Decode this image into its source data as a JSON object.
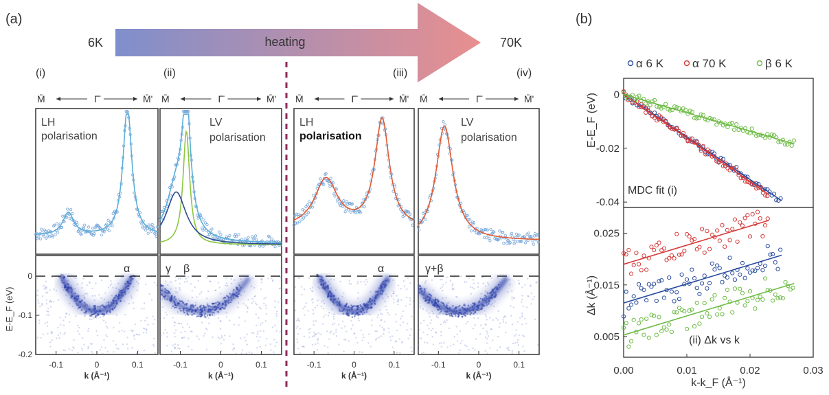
{
  "figure": {
    "panel_a_label": "(a)",
    "panel_b_label": "(b)",
    "temp_start": "6K",
    "temp_end": "70K",
    "arrow_label": "heating",
    "arrow_gradient": [
      "#7f8fcc",
      "#e88f8f"
    ]
  },
  "chart_data": [
    {
      "id": "a-i",
      "type": "line",
      "roman": "(i)",
      "k_labels": [
        "M̄",
        "Γ̄",
        "M̄'"
      ],
      "mdc_text": [
        "LH",
        "polarisation"
      ],
      "band_labels": [
        "α"
      ],
      "ylabel": "E-E_F (eV)",
      "xlabel": "k (Å⁻¹)",
      "x_ticks": [
        "-0.1",
        "0",
        "0.1"
      ],
      "y_ticks": [
        "0",
        "-0.1",
        "-0.2"
      ],
      "xlim": [
        -0.15,
        0.15
      ],
      "mdc_series": [
        {
          "color": "#5aaed8",
          "peaks": [
            {
              "center": -0.07,
              "height": 0.17,
              "width": 0.016
            },
            {
              "center": 0.075,
              "height": 0.98,
              "width": 0.013
            }
          ],
          "baseline": 0.1
        }
      ],
      "arpes_bands": [
        {
          "center": 0.0,
          "curvature": 12,
          "intensity": 1.0
        }
      ],
      "fermi_line": true
    },
    {
      "id": "a-ii",
      "type": "line",
      "roman": "(ii)",
      "k_labels": [
        "M̄",
        "Γ̄",
        "M̄'"
      ],
      "mdc_text": [
        "LV",
        "polarisation"
      ],
      "band_labels": [
        "γ",
        "β"
      ],
      "xlabel": "k (Å⁻¹)",
      "x_ticks": [
        "-0.1",
        "0",
        "0.1"
      ],
      "xlim": [
        -0.15,
        0.15
      ],
      "mdc_series": [
        {
          "name": "total",
          "color": "#5aaed8",
          "peaks": [
            {
              "center": -0.085,
              "height": 0.95,
              "width": 0.012
            },
            {
              "center": -0.11,
              "height": 0.4,
              "width": 0.03
            }
          ],
          "baseline": 0.04
        },
        {
          "name": "green",
          "color": "#8cc63f",
          "peaks": [
            {
              "center": -0.085,
              "height": 0.86,
              "width": 0.01
            }
          ],
          "baseline": 0.03
        },
        {
          "name": "blue",
          "color": "#2b4c8c",
          "peaks": [
            {
              "center": -0.11,
              "height": 0.4,
              "width": 0.03
            }
          ],
          "baseline": 0.03
        }
      ],
      "arpes_bands": [
        {
          "center": -0.05,
          "curvature": 6,
          "intensity": 0.8
        }
      ],
      "fermi_line": true
    },
    {
      "id": "a-iii",
      "type": "line",
      "roman": "(iii)",
      "k_labels": [
        "M̄",
        "Γ̄",
        "M̄'"
      ],
      "mdc_text": [
        "LH",
        "polarisation"
      ],
      "band_labels": [
        "α"
      ],
      "xlabel": "k (Å⁻¹)",
      "x_ticks": [
        "-0.1",
        "0",
        "0.1"
      ],
      "xlim": [
        -0.15,
        0.15
      ],
      "mdc_series": [
        {
          "color": "#e05a32",
          "peaks": [
            {
              "center": -0.07,
              "height": 0.37,
              "width": 0.035
            },
            {
              "center": 0.07,
              "height": 0.82,
              "width": 0.022
            }
          ],
          "baseline": 0.15
        }
      ],
      "arpes_bands": [
        {
          "center": 0.0,
          "curvature": 12,
          "intensity": 1.0
        }
      ],
      "fermi_line": true
    },
    {
      "id": "a-iv",
      "type": "line",
      "roman": "(iv)",
      "k_labels": [
        "M̄",
        "Γ̄",
        "M̄'"
      ],
      "mdc_text": [
        "LV",
        "polarisation"
      ],
      "band_labels": [
        "γ+β"
      ],
      "xlabel": "k (Å⁻¹)",
      "x_ticks": [
        "-0.1",
        "0",
        "0.1"
      ],
      "xlim": [
        -0.15,
        0.15
      ],
      "mdc_series": [
        {
          "color": "#e05a32",
          "peaks": [
            {
              "center": -0.085,
              "height": 0.87,
              "width": 0.026
            }
          ],
          "baseline": 0.06
        }
      ],
      "arpes_bands": [
        {
          "center": -0.05,
          "curvature": 6,
          "intensity": 1.0
        }
      ],
      "fermi_line": true
    },
    {
      "id": "b-i",
      "type": "scatter",
      "panel_label": "MDC fit   (i)",
      "ylabel": "E-E_F (eV)",
      "y_ticks": [
        0,
        -0.02,
        -0.04
      ],
      "ylim": [
        -0.042,
        0.006
      ],
      "xlim": [
        0.0,
        0.03
      ],
      "legend": [
        "α 6 K",
        "α 70 K",
        "β 6 K"
      ],
      "series": [
        {
          "name": "α 6 K",
          "color": "#2b4c9e",
          "slope": -1.58,
          "x_range": [
            0.0,
            0.025
          ]
        },
        {
          "name": "α 70 K",
          "color": "#d63a3a",
          "slope": -1.62,
          "x_range": [
            0.0,
            0.023
          ]
        },
        {
          "name": "β 6 K",
          "color": "#6dbb45",
          "slope": -0.68,
          "x_range": [
            0.0,
            0.027
          ]
        }
      ]
    },
    {
      "id": "b-ii",
      "type": "scatter",
      "panel_label": "(ii)  Δk vs k",
      "ylabel": "Δk (Å⁻¹)",
      "xlabel": "k-k_F (Å⁻¹)",
      "x_ticks": [
        "0.00",
        "0.01",
        "0.02",
        "0.03"
      ],
      "y_ticks": [
        0.025,
        0.015,
        0.005
      ],
      "ylim": [
        0.001,
        0.03
      ],
      "xlim": [
        0.0,
        0.03
      ],
      "series": [
        {
          "name": "α 6 K",
          "color": "#2b4c9e",
          "intercept": 0.0115,
          "slope": 0.37,
          "x_range": [
            0.0,
            0.025
          ]
        },
        {
          "name": "α 70 K",
          "color": "#d63a3a",
          "intercept": 0.019,
          "slope": 0.37,
          "x_range": [
            0.0,
            0.023
          ]
        },
        {
          "name": "β 6 K",
          "color": "#6dbb45",
          "intercept": 0.0053,
          "slope": 0.37,
          "x_range": [
            0.0,
            0.027
          ]
        }
      ]
    }
  ]
}
